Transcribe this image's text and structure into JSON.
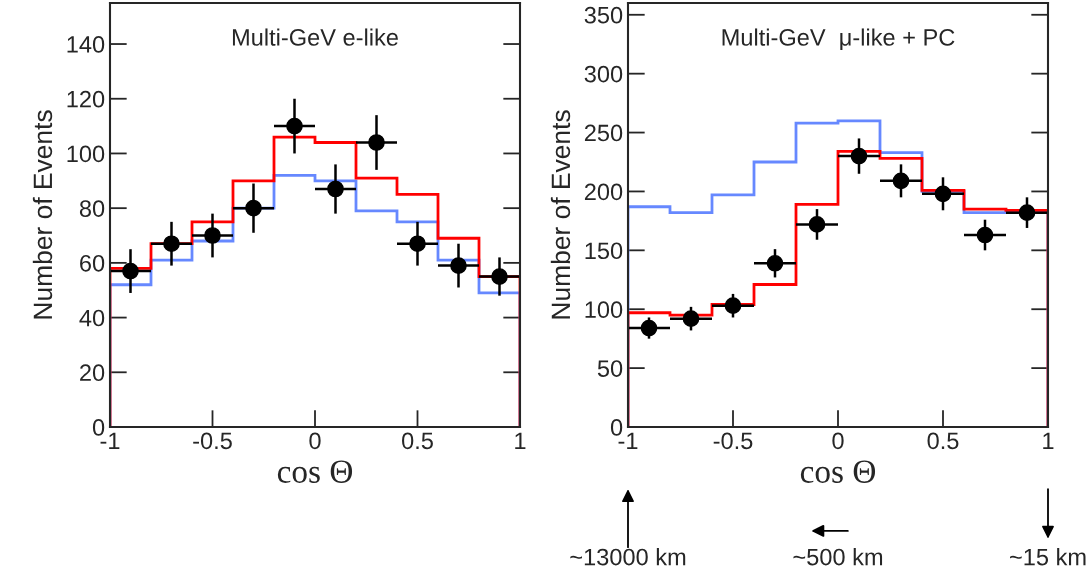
{
  "chart_data": [
    {
      "type": "histogram",
      "title": "Multi-GeV e-like",
      "xlabel": "cos Θ",
      "ylabel": "Number of Events",
      "xlim": [
        -1,
        1
      ],
      "xticks": [
        -1,
        -0.5,
        0,
        0.5,
        1
      ],
      "ylim": [
        0,
        155
      ],
      "yticks": [
        0,
        20,
        40,
        60,
        80,
        100,
        120,
        140
      ],
      "grid": false,
      "legend": false,
      "series": [
        {
          "color": "#6688ff",
          "bins": [
            -1,
            -0.8,
            -0.6,
            -0.4,
            -0.2,
            0,
            0.2,
            0.4,
            0.6,
            0.8,
            1
          ],
          "values": [
            52,
            61,
            68,
            80,
            92,
            90,
            79,
            75,
            61,
            49
          ]
        },
        {
          "color": "#ff0000",
          "bins": [
            -1,
            -0.8,
            -0.6,
            -0.4,
            -0.2,
            0,
            0.2,
            0.4,
            0.6,
            0.8,
            1
          ],
          "values": [
            58,
            67,
            75,
            90,
            106,
            104,
            91,
            85,
            69,
            55
          ]
        },
        {
          "type": "scatter",
          "color": "#000000",
          "marker": "circle",
          "x": [
            -0.9,
            -0.7,
            -0.5,
            -0.3,
            -0.1,
            0.1,
            0.3,
            0.5,
            0.7,
            0.9
          ],
          "values": [
            57,
            67,
            70,
            80,
            110,
            87,
            104,
            67,
            59,
            55
          ],
          "errors": [
            8,
            8,
            8,
            9,
            10,
            9,
            10,
            8,
            8,
            7
          ],
          "xerrors": [
            0.1,
            0.1,
            0.1,
            0.1,
            0.1,
            0.1,
            0.1,
            0.1,
            0.1,
            0.1
          ]
        }
      ]
    },
    {
      "type": "histogram",
      "title": "Multi-GeV  μ-like + PC",
      "xlabel": "cos Θ",
      "ylabel": "Number of Events",
      "xlim": [
        -1,
        1
      ],
      "xticks": [
        -1,
        -0.5,
        0,
        0.5,
        1
      ],
      "ylim": [
        0,
        360
      ],
      "yticks": [
        0,
        50,
        100,
        150,
        200,
        250,
        300,
        350
      ],
      "grid": false,
      "legend": false,
      "series": [
        {
          "color": "#6688ff",
          "bins": [
            -1,
            -0.8,
            -0.6,
            -0.4,
            -0.2,
            0,
            0.2,
            0.4,
            0.6,
            0.8,
            1
          ],
          "values": [
            187,
            182,
            197,
            225,
            258,
            260,
            233,
            200,
            182,
            183
          ]
        },
        {
          "color": "#ff0000",
          "bins": [
            -1,
            -0.8,
            -0.6,
            -0.4,
            -0.2,
            0,
            0.2,
            0.4,
            0.6,
            0.8,
            1
          ],
          "values": [
            97,
            95,
            104,
            121,
            189,
            234,
            228,
            201,
            185,
            184
          ]
        },
        {
          "type": "scatter",
          "color": "#000000",
          "marker": "circle",
          "x": [
            -0.9,
            -0.7,
            -0.5,
            -0.3,
            -0.1,
            0.1,
            0.3,
            0.5,
            0.7,
            0.9
          ],
          "values": [
            84,
            92,
            103,
            139,
            172,
            230,
            209,
            198,
            163,
            182
          ],
          "errors": [
            9,
            10,
            10,
            12,
            13,
            15,
            14,
            14,
            13,
            13
          ],
          "xerrors": [
            0.1,
            0.1,
            0.1,
            0.1,
            0.1,
            0.1,
            0.1,
            0.1,
            0.1,
            0.1
          ]
        }
      ],
      "annotations": [
        "~13000 km",
        "~500 km",
        "~15 km"
      ]
    }
  ]
}
